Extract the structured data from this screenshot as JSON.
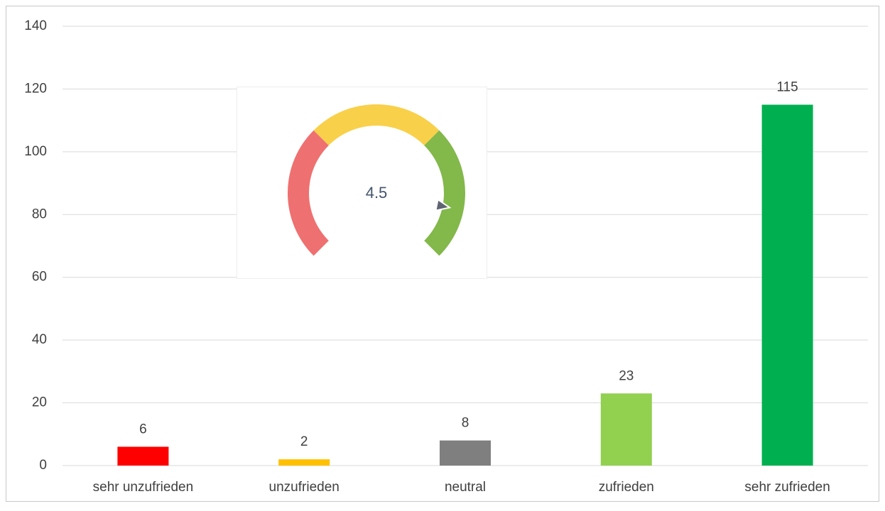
{
  "chart_data": {
    "type": "bar",
    "categories": [
      "sehr unzufrieden",
      "unzufrieden",
      "neutral",
      "zufrieden",
      "sehr zufrieden"
    ],
    "values": [
      6,
      2,
      8,
      23,
      115
    ],
    "colors": [
      "#ff0000",
      "#ffc000",
      "#7f7f7f",
      "#92d050",
      "#00b050"
    ],
    "ylim": [
      0,
      140
    ],
    "yticks": [
      0,
      20,
      40,
      60,
      80,
      100,
      120,
      140
    ],
    "grid": true,
    "gauge": {
      "value": 4.5,
      "lim": [
        1,
        5
      ],
      "colors": [
        "#ef7070",
        "#f9d04a",
        "#83b84a"
      ]
    }
  }
}
